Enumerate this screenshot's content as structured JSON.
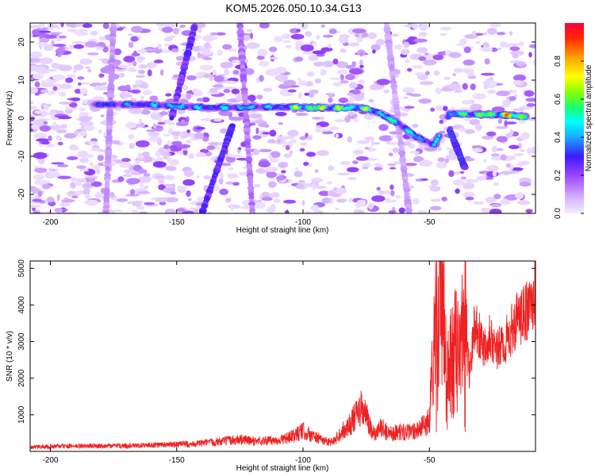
{
  "figure_title": "KOM5.2026.050.10.34.G13",
  "chart_data": [
    {
      "type": "heatmap",
      "title": "KOM5.2026.050.10.34.G13",
      "xlabel": "Height of straight line (km)",
      "ylabel": "Frequency (Hz)",
      "xlim": [
        -208,
        -8
      ],
      "ylim": [
        -25,
        25
      ],
      "xticks": [
        -200,
        -150,
        -100,
        -50
      ],
      "yticks": [
        -20,
        -10,
        0,
        10,
        20
      ],
      "colorbar": {
        "label": "Normalized spectral amplitude",
        "range": [
          0,
          1
        ],
        "ticks": [
          "0.0",
          "0.2",
          "0.4",
          "0.6",
          "0.8"
        ]
      },
      "colormap": [
        {
          "v": 0.0,
          "c": "#f4ecff"
        },
        {
          "v": 0.08,
          "c": "#d6b4ff"
        },
        {
          "v": 0.2,
          "c": "#9a44ff"
        },
        {
          "v": 0.3,
          "c": "#3c1cff"
        },
        {
          "v": 0.4,
          "c": "#1aa8ff"
        },
        {
          "v": 0.48,
          "c": "#00ffff"
        },
        {
          "v": 0.56,
          "c": "#1cff6c"
        },
        {
          "v": 0.64,
          "c": "#8cff00"
        },
        {
          "v": 0.72,
          "c": "#ffff00"
        },
        {
          "v": 0.82,
          "c": "#ffa000"
        },
        {
          "v": 0.92,
          "c": "#ff2800"
        },
        {
          "v": 1.0,
          "c": "#ff0040"
        }
      ],
      "ridge": [
        {
          "x": -183,
          "y": 3.6,
          "amp": 0.34
        },
        {
          "x": -162,
          "y": 3.6,
          "amp": 0.42
        },
        {
          "x": -150,
          "y": 3.2,
          "amp": 0.5
        },
        {
          "x": -138,
          "y": 2.8,
          "amp": 0.45
        },
        {
          "x": -125,
          "y": 2.8,
          "amp": 0.5
        },
        {
          "x": -110,
          "y": 3.0,
          "amp": 0.42
        },
        {
          "x": -100,
          "y": 2.8,
          "amp": 0.8
        },
        {
          "x": -88,
          "y": 2.7,
          "amp": 0.72
        },
        {
          "x": -78,
          "y": 2.8,
          "amp": 0.7
        },
        {
          "x": -70,
          "y": 1.5,
          "amp": 0.6
        },
        {
          "x": -62,
          "y": -1.5,
          "amp": 0.55
        },
        {
          "x": -55,
          "y": -5.0,
          "amp": 0.5
        },
        {
          "x": -48,
          "y": -7.0,
          "amp": 0.45
        },
        {
          "x": -42,
          "y": 1.2,
          "amp": 0.5
        },
        {
          "x": -30,
          "y": 1.0,
          "amp": 0.7
        },
        {
          "x": -20,
          "y": 0.9,
          "amp": 0.85
        },
        {
          "x": -12,
          "y": 0.3,
          "amp": 0.95
        }
      ],
      "diagonal_streaks": [
        {
          "from": [
            -143,
            24
          ],
          "to": [
            -152,
            0
          ],
          "amp": 0.3
        },
        {
          "from": [
            -128,
            -2
          ],
          "to": [
            -140,
            -25
          ],
          "amp": 0.33
        },
        {
          "from": [
            -125,
            25
          ],
          "to": [
            -120,
            -25
          ],
          "amp": 0.18
        },
        {
          "from": [
            -175,
            25
          ],
          "to": [
            -178,
            -25
          ],
          "amp": 0.14
        },
        {
          "from": [
            -67,
            25
          ],
          "to": [
            -58,
            -25
          ],
          "amp": 0.12
        },
        {
          "from": [
            -42,
            -3
          ],
          "to": [
            -36,
            -13
          ],
          "amp": 0.35
        }
      ]
    },
    {
      "type": "line",
      "xlabel": "Height of straight line (km)",
      "ylabel": "SNR (10 * v/v)",
      "xlim": [
        -208,
        -8
      ],
      "ylim": [
        0,
        5200
      ],
      "xticks": [
        -200,
        -150,
        -100,
        -50
      ],
      "yticks": [
        1000,
        2000,
        3000,
        4000,
        5000
      ],
      "series": [
        {
          "name": "SNR",
          "color": "#ee2222",
          "x": [
            -208,
            -195,
            -180,
            -165,
            -150,
            -140,
            -130,
            -125,
            -120,
            -110,
            -105,
            -100,
            -96,
            -92,
            -88,
            -85,
            -82,
            -79,
            -77,
            -75,
            -73,
            -71,
            -69,
            -67,
            -65,
            -62,
            -58,
            -55,
            -52,
            -50,
            -48,
            -46,
            -44,
            -42,
            -40,
            -38,
            -36,
            -34,
            -32,
            -30,
            -28,
            -26,
            -24,
            -22,
            -20,
            -18,
            -16,
            -14,
            -12,
            -10,
            -8
          ],
          "y": [
            120,
            140,
            150,
            160,
            190,
            220,
            290,
            330,
            280,
            300,
            380,
            560,
            420,
            300,
            260,
            520,
            700,
            960,
            1160,
            980,
            550,
            450,
            700,
            520,
            500,
            540,
            520,
            600,
            700,
            900,
            3200,
            4000,
            3600,
            2200,
            3700,
            2400,
            3900,
            2000,
            3600,
            3100,
            2900,
            3300,
            2700,
            2850,
            3000,
            3200,
            3550,
            3600,
            3800,
            3900,
            4500
          ]
        }
      ]
    }
  ]
}
